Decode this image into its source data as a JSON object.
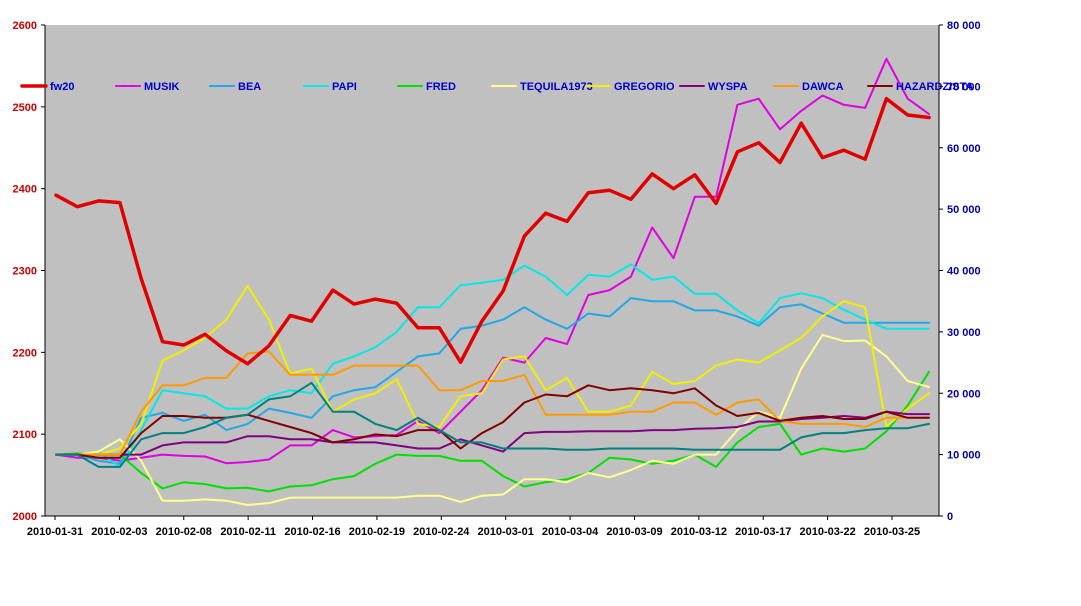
{
  "chart_data": {
    "type": "line",
    "title": "",
    "xlabel": "",
    "ylabel": "",
    "y_left": {
      "range": [
        2000,
        2600
      ],
      "ticks": [
        "2000",
        "2100",
        "2200",
        "2300",
        "2400",
        "2500",
        "2600"
      ],
      "color": "#cc0000"
    },
    "y_right": {
      "range": [
        0,
        80000
      ],
      "ticks": [
        "0",
        "10 000",
        "20 000",
        "30 000",
        "40 000",
        "50 000",
        "60 000",
        "70 000",
        "80 000"
      ],
      "color": "#0000aa"
    },
    "x_tick_labels": [
      "2010-01-31",
      "2010-02-03",
      "2010-02-08",
      "2010-02-11",
      "2010-02-16",
      "2010-02-19",
      "2010-02-24",
      "2010-03-01",
      "2010-03-04",
      "2010-03-09",
      "2010-03-12",
      "2010-03-17",
      "2010-03-22",
      "2010-03-25"
    ],
    "plot_background": "#c0c0c0",
    "grid": false,
    "legend_position": "top",
    "series": [
      {
        "name": "fw20",
        "axis": "left",
        "color": "#e00000",
        "width": 3.5,
        "values": [
          2392,
          2378,
          2385,
          2383,
          2290,
          2213,
          2209,
          2222,
          2202,
          2186,
          2208,
          2245,
          2238,
          2276,
          2259,
          2265,
          2260,
          2230,
          2230,
          2188,
          2238,
          2275,
          2342,
          2370,
          2360,
          2395,
          2398,
          2387,
          2418,
          2400,
          2417,
          2382,
          2445,
          2456,
          2432,
          2480,
          2438,
          2447,
          2436,
          2510,
          2490,
          2487
        ]
      },
      {
        "name": "MUSIK",
        "axis": "right",
        "color": "#e000e0",
        "width": 2,
        "values": [
          10000,
          9500,
          9500,
          9000,
          9500,
          10000,
          9800,
          9700,
          8600,
          8800,
          9200,
          11500,
          11500,
          14000,
          12800,
          13000,
          13200,
          15500,
          13500,
          17000,
          20500,
          25800,
          25000,
          29000,
          28000,
          36000,
          36800,
          39000,
          47000,
          42000,
          52000,
          52000,
          67000,
          68000,
          63000,
          66000,
          68500,
          67000,
          66500,
          74500,
          68000,
          65500
        ]
      },
      {
        "name": "BEA",
        "axis": "right",
        "color": "#20a8e8",
        "width": 2,
        "values": [
          10000,
          10000,
          9000,
          8500,
          16000,
          16800,
          15500,
          16500,
          14000,
          15000,
          17500,
          16800,
          16000,
          19500,
          20500,
          21000,
          23500,
          26000,
          26500,
          30500,
          31000,
          32000,
          34000,
          32000,
          30500,
          33000,
          32500,
          35500,
          35000,
          35000,
          33500,
          33500,
          32500,
          31000,
          34000,
          34500,
          33000,
          31500,
          31500,
          31500,
          31500,
          31500
        ]
      },
      {
        "name": "PAPI",
        "axis": "right",
        "color": "#00e8e8",
        "width": 2,
        "values": [
          10000,
          10000,
          10500,
          8000,
          14000,
          20500,
          20000,
          19500,
          17500,
          17500,
          19500,
          20500,
          20000,
          24800,
          26000,
          27500,
          30000,
          34000,
          34000,
          37600,
          38000,
          38500,
          40800,
          39000,
          36000,
          39300,
          39000,
          41000,
          38500,
          39000,
          36200,
          36200,
          33500,
          31400,
          35500,
          36300,
          35500,
          33600,
          32000,
          30500,
          30500,
          30500
        ]
      },
      {
        "name": "FRED",
        "axis": "right",
        "color": "#00e000",
        "width": 2,
        "values": [
          10000,
          10200,
          10000,
          10000,
          7000,
          4500,
          5500,
          5200,
          4500,
          4600,
          4000,
          4800,
          5000,
          6000,
          6500,
          8500,
          10000,
          9800,
          9800,
          9000,
          9000,
          6500,
          4800,
          5500,
          6000,
          7000,
          9500,
          9200,
          8500,
          9000,
          10000,
          8000,
          12000,
          14500,
          15000,
          10000,
          11000,
          10500,
          11000,
          13800,
          18000,
          23500
        ]
      },
      {
        "name": "TEQUILA1973",
        "axis": "right",
        "color": "#ffff90",
        "width": 2,
        "values": [
          10000,
          10000,
          10500,
          12500,
          9000,
          2500,
          2500,
          2700,
          2500,
          1800,
          2100,
          3000,
          3000,
          3000,
          3000,
          3000,
          3000,
          3300,
          3300,
          2300,
          3300,
          3500,
          6000,
          6000,
          5500,
          7000,
          6300,
          7500,
          9000,
          8500,
          10000,
          10000,
          14000,
          17000,
          16000,
          24000,
          29500,
          28500,
          28600,
          26000,
          22000,
          21000
        ]
      },
      {
        "name": "GREGORIO",
        "axis": "right",
        "color": "#f0f000",
        "width": 2,
        "values": [
          10000,
          10000,
          10000,
          11000,
          15000,
          25300,
          27000,
          29000,
          32000,
          37500,
          32000,
          23200,
          24000,
          17000,
          19000,
          20000,
          22300,
          15000,
          14500,
          19500,
          20000,
          25500,
          26000,
          20500,
          22500,
          17000,
          17000,
          18000,
          23500,
          21500,
          22000,
          24500,
          25500,
          25000,
          27000,
          29000,
          32500,
          35000,
          34000,
          14600,
          17500,
          20000
        ]
      },
      {
        "name": "WYSPA",
        "axis": "right",
        "color": "#800080",
        "width": 2,
        "values": [
          10000,
          10000,
          10000,
          10000,
          10000,
          11500,
          12000,
          12000,
          12000,
          13000,
          13000,
          12500,
          12500,
          12000,
          12000,
          12000,
          11500,
          11000,
          11000,
          12500,
          11500,
          10500,
          13500,
          13700,
          13700,
          13800,
          13800,
          13800,
          14000,
          14000,
          14200,
          14300,
          14500,
          15400,
          15400,
          15800,
          16000,
          16300,
          16000,
          17000,
          16600,
          16600
        ]
      },
      {
        "name": "DAWCA",
        "axis": "right",
        "color": "#ff9900",
        "width": 2,
        "values": [
          10000,
          10000,
          10000,
          10000,
          17000,
          21300,
          21300,
          22500,
          22500,
          26500,
          26800,
          23000,
          23000,
          23000,
          24500,
          24500,
          24500,
          24500,
          20500,
          20500,
          22000,
          22000,
          23000,
          16500,
          16500,
          16500,
          16500,
          17000,
          17000,
          18500,
          18500,
          16500,
          18500,
          19000,
          15500,
          15000,
          15000,
          15000,
          14500,
          16000,
          16000,
          16000
        ]
      },
      {
        "name": "HAZARDZISTA",
        "axis": "right",
        "color": "#800000",
        "width": 2,
        "values": [
          10000,
          10000,
          9500,
          9500,
          13500,
          16300,
          16300,
          16000,
          16000,
          16500,
          15500,
          14500,
          13500,
          12000,
          12500,
          13300,
          13000,
          14000,
          14000,
          11000,
          13500,
          15300,
          18500,
          19800,
          19500,
          21300,
          20500,
          20800,
          20500,
          20000,
          20800,
          18000,
          16300,
          16800,
          15500,
          16000,
          16300,
          15800,
          15800,
          17000,
          16000,
          16000
        ]
      },
      {
        "name": "",
        "axis": "right",
        "color": "#008080",
        "width": 2,
        "values": [
          10000,
          10000,
          8000,
          8000,
          12500,
          13500,
          13500,
          14500,
          16000,
          16500,
          19000,
          19500,
          21700,
          17000,
          17000,
          15000,
          14000,
          16000,
          14000,
          12000,
          12000,
          11000,
          11000,
          11000,
          10800,
          10800,
          11000,
          11000,
          11000,
          11000,
          10800,
          10800,
          10800,
          10800,
          10800,
          12800,
          13500,
          13500,
          14000,
          14300,
          14300,
          15000
        ]
      }
    ]
  }
}
